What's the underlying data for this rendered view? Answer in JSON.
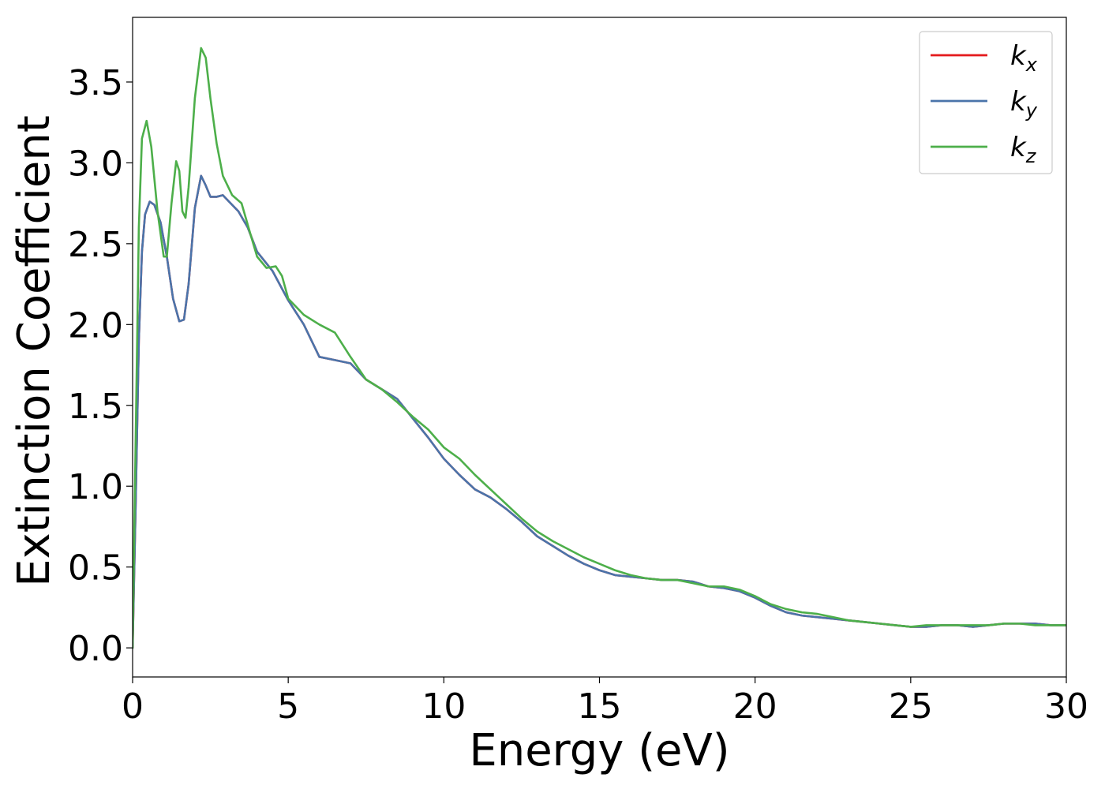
{
  "chart_data": {
    "type": "line",
    "xlabel": "Energy (eV)",
    "ylabel": "Extinction Coefficient",
    "xlim": [
      0,
      30
    ],
    "ylim": [
      -0.18,
      3.9
    ],
    "xticks": [
      0,
      5,
      10,
      15,
      20,
      25,
      30
    ],
    "xtick_labels": [
      "0",
      "5",
      "10",
      "15",
      "20",
      "25",
      "30"
    ],
    "yticks": [
      0.0,
      0.5,
      1.0,
      1.5,
      2.0,
      2.5,
      3.0,
      3.5
    ],
    "ytick_labels": [
      "0.0",
      "0.5",
      "1.0",
      "1.5",
      "2.0",
      "2.5",
      "3.0",
      "3.5"
    ],
    "grid": false,
    "legend_position": "top-right",
    "series": [
      {
        "name": "k_x",
        "label_main": "k",
        "label_sub": "x",
        "color": "#e41a1c",
        "x": [
          0,
          0.1,
          0.2,
          0.3,
          0.4,
          0.55,
          0.7,
          0.9,
          1.1,
          1.3,
          1.5,
          1.65,
          1.8,
          2.0,
          2.2,
          2.35,
          2.5,
          2.7,
          2.9,
          3.1,
          3.4,
          3.7,
          4.0,
          4.5,
          5.0,
          5.5,
          6.0,
          6.5,
          7.0,
          7.5,
          8.0,
          8.5,
          9.0,
          9.5,
          10.0,
          10.5,
          11.0,
          11.5,
          12.0,
          12.5,
          13.0,
          13.5,
          14.0,
          14.5,
          15.0,
          15.5,
          16.0,
          16.5,
          17.0,
          17.5,
          18.0,
          18.5,
          19.0,
          19.5,
          20.0,
          20.5,
          21.0,
          21.5,
          22.0,
          22.5,
          23.0,
          23.5,
          24.0,
          24.5,
          25.0,
          25.5,
          26.0,
          26.5,
          27.0,
          27.5,
          28.0,
          28.5,
          29.0,
          29.5,
          30.0
        ],
        "values": [
          0.0,
          0.9,
          1.9,
          2.45,
          2.68,
          2.76,
          2.74,
          2.63,
          2.42,
          2.16,
          2.02,
          2.03,
          2.25,
          2.72,
          2.92,
          2.86,
          2.79,
          2.79,
          2.8,
          2.76,
          2.7,
          2.6,
          2.45,
          2.33,
          2.15,
          2.0,
          1.8,
          1.78,
          1.76,
          1.66,
          1.6,
          1.54,
          1.42,
          1.3,
          1.17,
          1.07,
          0.98,
          0.93,
          0.86,
          0.78,
          0.69,
          0.63,
          0.57,
          0.52,
          0.48,
          0.45,
          0.44,
          0.43,
          0.42,
          0.42,
          0.41,
          0.38,
          0.37,
          0.35,
          0.31,
          0.26,
          0.22,
          0.2,
          0.19,
          0.18,
          0.17,
          0.16,
          0.15,
          0.14,
          0.13,
          0.13,
          0.14,
          0.14,
          0.13,
          0.14,
          0.15,
          0.15,
          0.15,
          0.14,
          0.14
        ]
      },
      {
        "name": "k_y",
        "label_main": "k",
        "label_sub": "y",
        "color": "#4a74aa",
        "x": [
          0,
          0.1,
          0.2,
          0.3,
          0.4,
          0.55,
          0.7,
          0.9,
          1.1,
          1.3,
          1.5,
          1.65,
          1.8,
          2.0,
          2.2,
          2.35,
          2.5,
          2.7,
          2.9,
          3.1,
          3.4,
          3.7,
          4.0,
          4.5,
          5.0,
          5.5,
          6.0,
          6.5,
          7.0,
          7.5,
          8.0,
          8.5,
          9.0,
          9.5,
          10.0,
          10.5,
          11.0,
          11.5,
          12.0,
          12.5,
          13.0,
          13.5,
          14.0,
          14.5,
          15.0,
          15.5,
          16.0,
          16.5,
          17.0,
          17.5,
          18.0,
          18.5,
          19.0,
          19.5,
          20.0,
          20.5,
          21.0,
          21.5,
          22.0,
          22.5,
          23.0,
          23.5,
          24.0,
          24.5,
          25.0,
          25.5,
          26.0,
          26.5,
          27.0,
          27.5,
          28.0,
          28.5,
          29.0,
          29.5,
          30.0
        ],
        "values": [
          0.0,
          0.9,
          1.9,
          2.45,
          2.68,
          2.76,
          2.74,
          2.63,
          2.42,
          2.16,
          2.02,
          2.03,
          2.25,
          2.72,
          2.92,
          2.86,
          2.79,
          2.79,
          2.8,
          2.76,
          2.7,
          2.6,
          2.45,
          2.33,
          2.15,
          2.0,
          1.8,
          1.78,
          1.76,
          1.66,
          1.6,
          1.54,
          1.42,
          1.3,
          1.17,
          1.07,
          0.98,
          0.93,
          0.86,
          0.78,
          0.69,
          0.63,
          0.57,
          0.52,
          0.48,
          0.45,
          0.44,
          0.43,
          0.42,
          0.42,
          0.41,
          0.38,
          0.37,
          0.35,
          0.31,
          0.26,
          0.22,
          0.2,
          0.19,
          0.18,
          0.17,
          0.16,
          0.15,
          0.14,
          0.13,
          0.13,
          0.14,
          0.14,
          0.13,
          0.14,
          0.15,
          0.15,
          0.15,
          0.14,
          0.14
        ]
      },
      {
        "name": "k_z",
        "label_main": "k",
        "label_sub": "z",
        "color": "#4daf4a",
        "x": [
          0,
          0.1,
          0.2,
          0.3,
          0.45,
          0.6,
          0.8,
          1.0,
          1.1,
          1.25,
          1.4,
          1.5,
          1.6,
          1.7,
          1.8,
          2.0,
          2.2,
          2.35,
          2.5,
          2.7,
          2.9,
          3.2,
          3.5,
          3.8,
          4.0,
          4.3,
          4.6,
          4.8,
          5.0,
          5.5,
          6.0,
          6.5,
          7.0,
          7.5,
          8.0,
          8.5,
          9.0,
          9.5,
          10.0,
          10.5,
          11.0,
          11.5,
          12.0,
          12.5,
          13.0,
          13.5,
          14.0,
          14.5,
          15.0,
          15.5,
          16.0,
          16.5,
          17.0,
          17.5,
          18.0,
          18.5,
          19.0,
          19.5,
          20.0,
          20.5,
          21.0,
          21.5,
          22.0,
          22.5,
          23.0,
          23.5,
          24.0,
          24.5,
          25.0,
          25.5,
          26.0,
          26.5,
          27.0,
          27.5,
          28.0,
          28.5,
          29.0,
          29.5,
          30.0
        ],
        "values": [
          0.0,
          1.3,
          2.6,
          3.15,
          3.26,
          3.1,
          2.7,
          2.42,
          2.42,
          2.75,
          3.01,
          2.95,
          2.7,
          2.66,
          2.85,
          3.4,
          3.71,
          3.65,
          3.4,
          3.12,
          2.92,
          2.8,
          2.75,
          2.55,
          2.42,
          2.35,
          2.36,
          2.3,
          2.16,
          2.06,
          2.0,
          1.95,
          1.8,
          1.66,
          1.6,
          1.52,
          1.43,
          1.35,
          1.24,
          1.17,
          1.07,
          0.98,
          0.89,
          0.8,
          0.72,
          0.66,
          0.61,
          0.56,
          0.52,
          0.48,
          0.45,
          0.43,
          0.42,
          0.42,
          0.4,
          0.38,
          0.38,
          0.36,
          0.32,
          0.27,
          0.24,
          0.22,
          0.21,
          0.19,
          0.17,
          0.16,
          0.15,
          0.14,
          0.13,
          0.14,
          0.14,
          0.14,
          0.14,
          0.14,
          0.15,
          0.15,
          0.14,
          0.14,
          0.14
        ]
      }
    ]
  }
}
